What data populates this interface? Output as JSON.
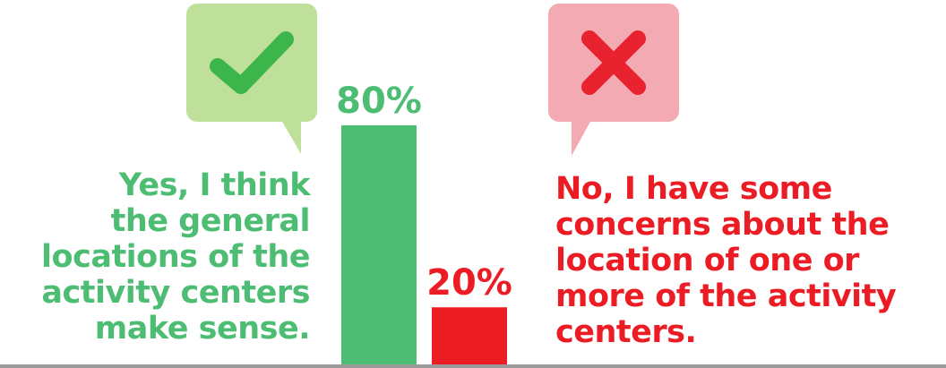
{
  "colors": {
    "yes": "#4dbd74",
    "no": "#ec1c24",
    "yes_bubble": "#bfe09a",
    "no_bubble": "#f4aab3",
    "check": "#3cb54a",
    "cross": "#e8232f"
  },
  "icons": {
    "yes": "check-icon",
    "no": "x-icon"
  },
  "answers": {
    "yes": {
      "lines": [
        "Yes, I think",
        "the general",
        "locations of the",
        "activity centers",
        "make sense."
      ]
    },
    "no": {
      "lines": [
        "No, I have some",
        "concerns about the",
        "location of one or",
        "more of the activity",
        "centers."
      ]
    }
  },
  "chart_data": {
    "type": "bar",
    "categories": [
      "Yes",
      "No"
    ],
    "values": [
      80,
      20
    ],
    "data_labels": [
      "80%",
      "20%"
    ],
    "ylim": [
      0,
      100
    ],
    "title": "",
    "xlabel": "",
    "ylabel": ""
  }
}
